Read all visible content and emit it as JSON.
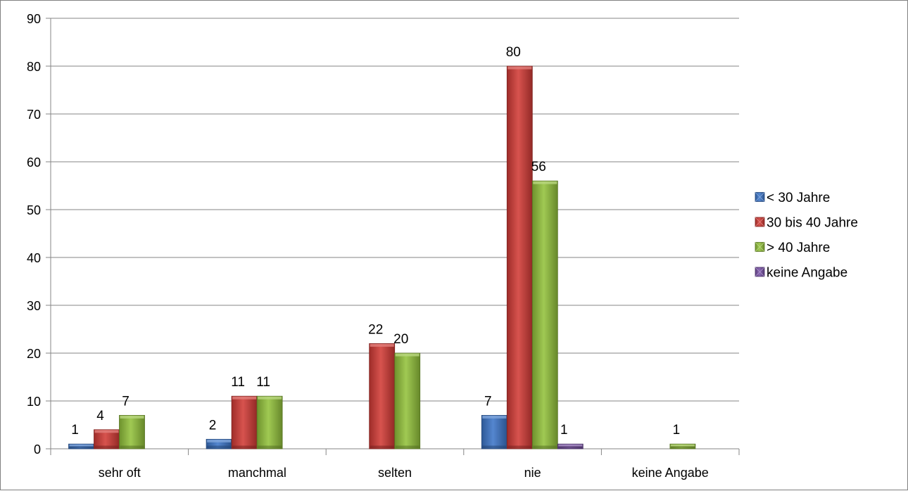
{
  "chart_data": {
    "type": "bar",
    "categories": [
      "sehr oft",
      "manchmal",
      "selten",
      "nie",
      "keine Angabe"
    ],
    "series": [
      {
        "name": "< 30 Jahre",
        "values": [
          1,
          2,
          0,
          7,
          0
        ],
        "color": "#3d76c9",
        "labels": [
          true,
          true,
          false,
          true,
          false
        ]
      },
      {
        "name": "30 bis 40 Jahre",
        "values": [
          4,
          11,
          22,
          80,
          0
        ],
        "color": "#d23b36",
        "labels": [
          true,
          true,
          true,
          true,
          false
        ]
      },
      {
        "name": "> 40 Jahre",
        "values": [
          7,
          11,
          20,
          56,
          1
        ],
        "color": "#93c23c",
        "labels": [
          true,
          true,
          true,
          true,
          true
        ]
      },
      {
        "name": "keine Angabe",
        "values": [
          0,
          0,
          0,
          1,
          0
        ],
        "color": "#7a53a8",
        "labels": [
          false,
          false,
          false,
          true,
          false
        ]
      }
    ],
    "yticks": [
      0,
      10,
      20,
      30,
      40,
      50,
      60,
      70,
      80,
      90
    ],
    "ylim": [
      0,
      90
    ],
    "grid": true,
    "legend": "right"
  }
}
